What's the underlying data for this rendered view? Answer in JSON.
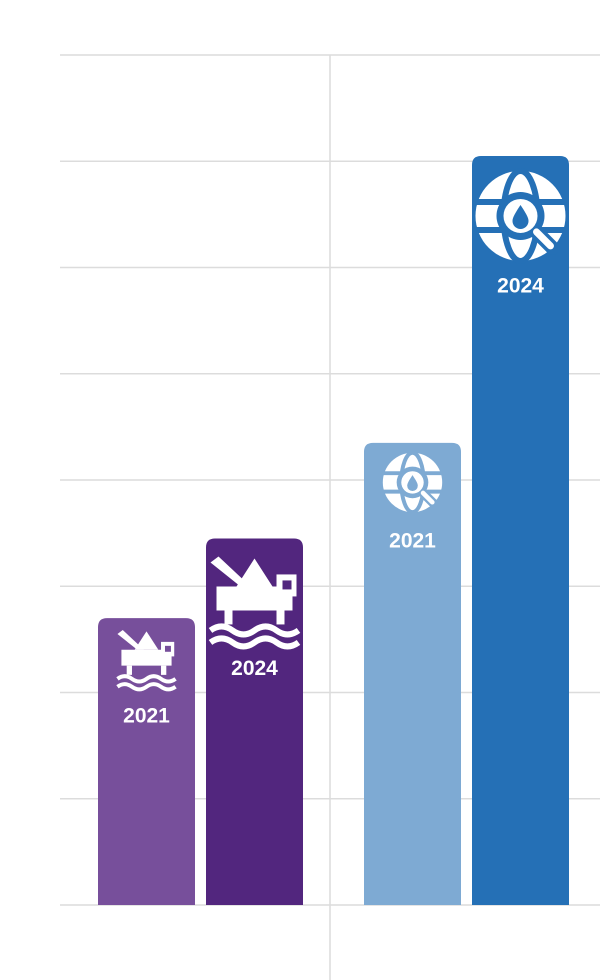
{
  "chart_data": {
    "type": "bar",
    "categories": [
      null,
      null
    ],
    "series": [
      {
        "name": "2021",
        "colors": [
          "#774f9b",
          "#7eaad3"
        ],
        "values": [
          2.7,
          4.35
        ]
      },
      {
        "name": "2024",
        "colors": [
          "#52267e",
          "#2570b6"
        ],
        "values": [
          3.45,
          7.05
        ]
      }
    ],
    "ylim": [
      0,
      8
    ],
    "yticks": [
      0,
      1,
      2,
      3,
      4,
      5,
      6,
      7,
      8
    ],
    "grid": true
  }
}
